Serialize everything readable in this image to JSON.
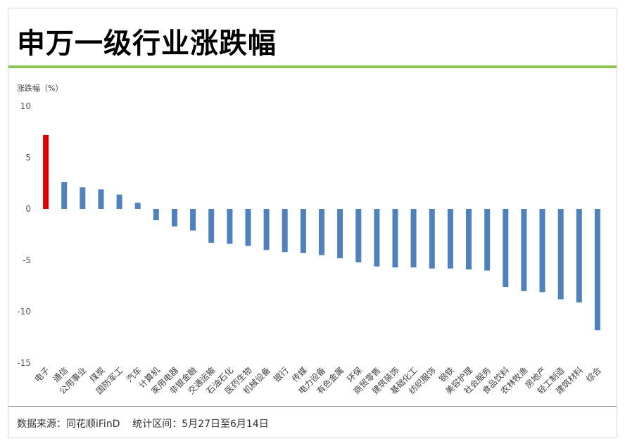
{
  "title": "申万一级行业涨跌幅",
  "footer": {
    "source_label": "数据来源：",
    "source": "同花顺iFinD",
    "period_label": "统计区间：",
    "period": "5月27日至6月14日"
  },
  "colors": {
    "accent_line": "#8fc653",
    "positive_highlight": "#e00000",
    "bar": "#4f81bd"
  },
  "chart_data": {
    "type": "bar",
    "title": "申万一级行业涨跌幅",
    "ylabel": "涨跌幅（%）",
    "xlabel": "",
    "ylim": [
      -15,
      10
    ],
    "yticks": [
      10,
      5,
      0,
      -5,
      -10,
      -15
    ],
    "grid": false,
    "categories": [
      "电子",
      "通信",
      "公用事业",
      "煤炭",
      "国防军工",
      "汽车",
      "计算机",
      "家用电器",
      "非银金融",
      "交通运输",
      "石油石化",
      "医药生物",
      "机械设备",
      "银行",
      "传媒",
      "电力设备",
      "有色金属",
      "环保",
      "商贸零售",
      "建筑装饰",
      "基础化工",
      "纺织服饰",
      "钢铁",
      "美容护理",
      "社会服务",
      "食品饮料",
      "农林牧渔",
      "房地产",
      "轻工制造",
      "建筑材料",
      "综合"
    ],
    "values": [
      7.2,
      2.6,
      2.1,
      1.9,
      1.4,
      0.6,
      -1.1,
      -1.7,
      -2.1,
      -3.3,
      -3.4,
      -3.6,
      -4.0,
      -4.2,
      -4.3,
      -4.5,
      -4.8,
      -5.2,
      -5.6,
      -5.7,
      -5.7,
      -5.8,
      -5.8,
      -5.9,
      -6.0,
      -7.6,
      -8.0,
      -8.1,
      -8.8,
      -9.1,
      -11.8
    ],
    "highlight_index": 0
  }
}
